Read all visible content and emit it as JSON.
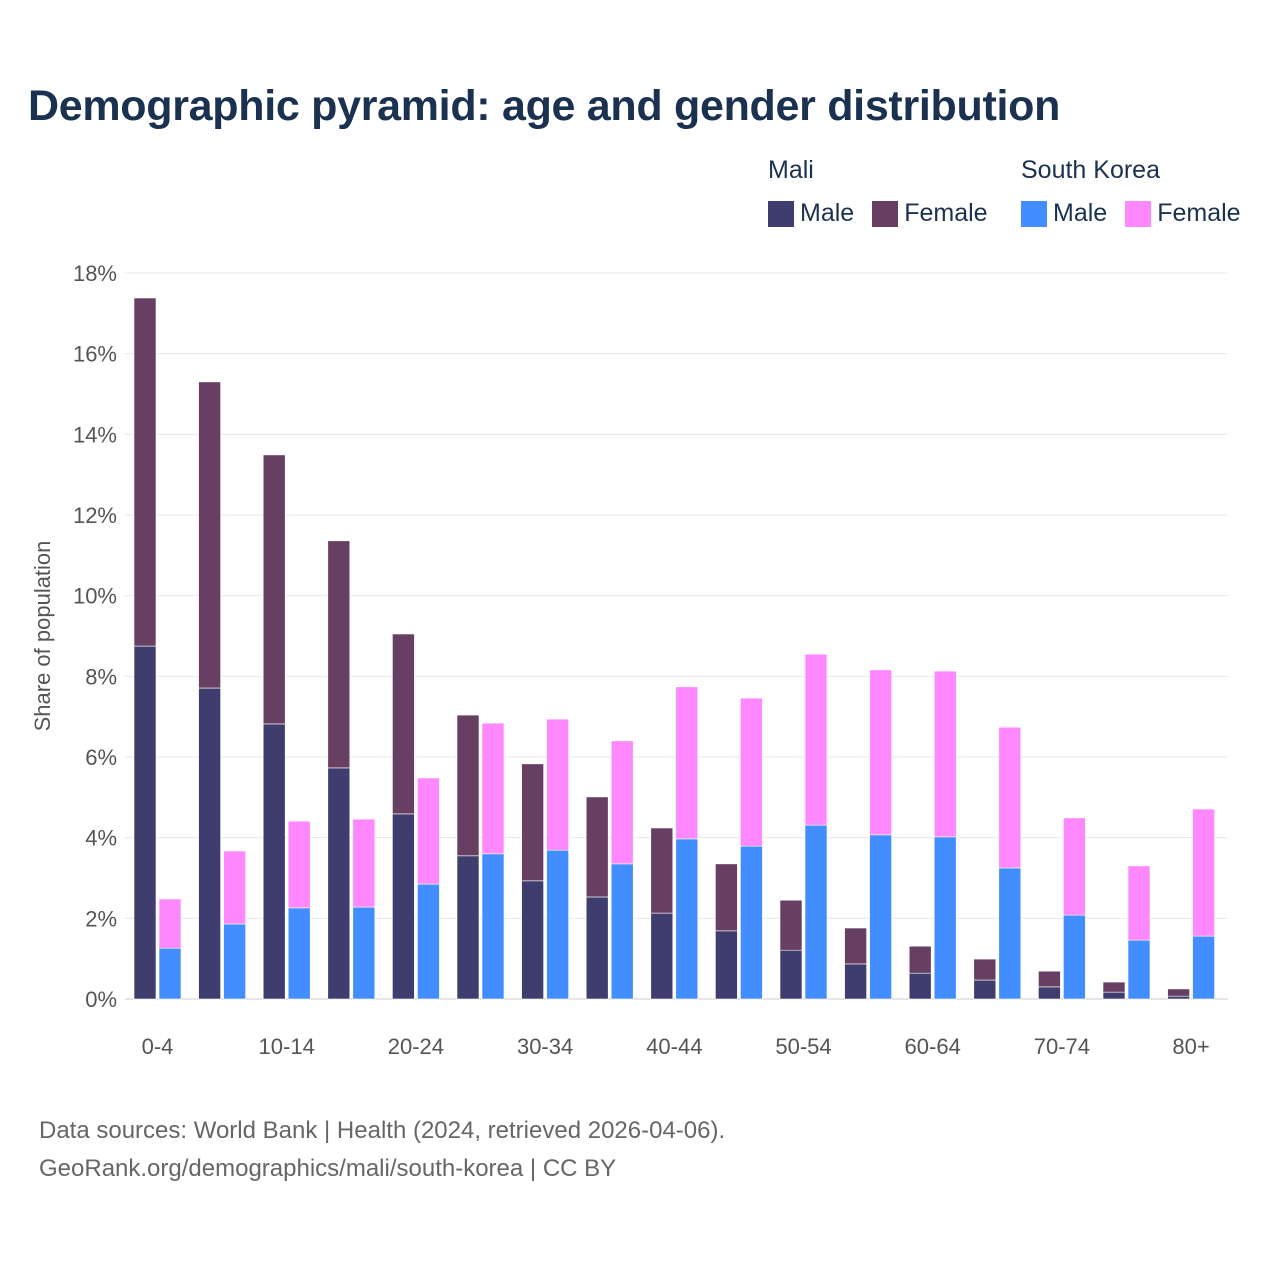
{
  "chart_data": {
    "type": "bar",
    "stacked": true,
    "title": "Demographic pyramid: age and gender distribution",
    "ylabel": "Share of population",
    "xlabel": "",
    "ylim": [
      0,
      18
    ],
    "yticks": [
      "0%",
      "2%",
      "4%",
      "6%",
      "8%",
      "10%",
      "12%",
      "14%",
      "16%",
      "18%"
    ],
    "grid": true,
    "legend_placement": "top-right",
    "categories": [
      "0-4",
      "5-9",
      "10-14",
      "15-19",
      "20-24",
      "25-29",
      "30-34",
      "35-39",
      "40-44",
      "45-49",
      "50-54",
      "55-59",
      "60-64",
      "65-69",
      "70-74",
      "75-79",
      "80+"
    ],
    "tick_labels": [
      "0-4",
      "10-14",
      "20-24",
      "30-34",
      "40-44",
      "50-54",
      "60-64",
      "70-74",
      "80+"
    ],
    "countries": [
      {
        "name": "Mali",
        "series": [
          {
            "name": "Male",
            "color": "#3f3d6e",
            "values": [
              8.75,
              7.71,
              6.82,
              5.73,
              4.59,
              3.55,
              2.93,
              2.53,
              2.13,
              1.69,
              1.21,
              0.87,
              0.64,
              0.47,
              0.3,
              0.17,
              0.07
            ]
          },
          {
            "name": "Female",
            "color": "#663f62",
            "values": [
              8.63,
              7.59,
              6.67,
              5.63,
              4.46,
              3.49,
              2.9,
              2.48,
              2.11,
              1.66,
              1.24,
              0.89,
              0.67,
              0.52,
              0.39,
              0.25,
              0.18
            ]
          }
        ]
      },
      {
        "name": "South Korea",
        "series": [
          {
            "name": "Male",
            "color": "#428dff",
            "values": [
              1.26,
              1.86,
              2.26,
              2.28,
              2.85,
              3.6,
              3.69,
              3.35,
              3.97,
              3.79,
              4.31,
              4.07,
              4.02,
              3.25,
              2.08,
              1.46,
              1.56
            ]
          },
          {
            "name": "Female",
            "color": "#ff88ff",
            "values": [
              1.22,
              1.81,
              2.15,
              2.18,
              2.63,
              3.24,
              3.25,
              3.05,
              3.77,
              3.67,
              4.24,
              4.09,
              4.11,
              3.49,
              2.41,
              1.84,
              3.15
            ]
          }
        ]
      }
    ]
  },
  "footer": {
    "source": "Data sources: World Bank | Health (2024, retrieved 2026-04-06).",
    "credit": "GeoRank.org/demographics/mali/south-korea | CC BY"
  }
}
